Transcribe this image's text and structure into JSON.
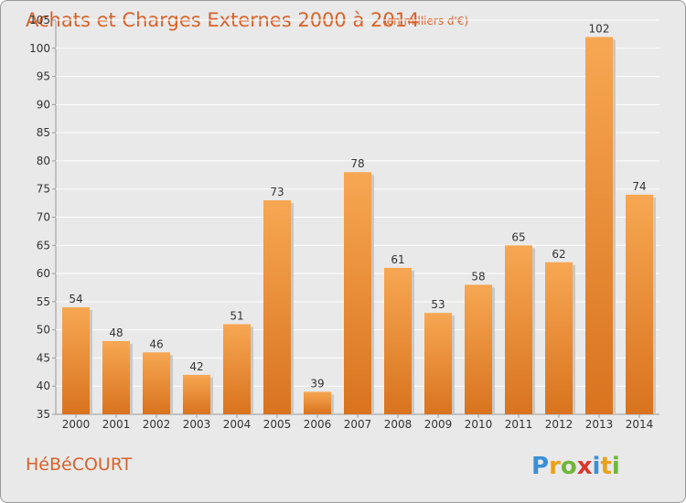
{
  "header": {
    "title": "Achats et Charges Externes 2000 à 2014",
    "unit": "(en milliers d'€)"
  },
  "footer": {
    "commune": "HéBéCOURT",
    "brand_letters": [
      "P",
      "r",
      "o",
      "x",
      "i",
      "t",
      "i"
    ],
    "brand_colors": [
      "#3a8fd6",
      "#e8a21a",
      "#6fb63a",
      "#d9382b",
      "#3a8fd6",
      "#e8a21a",
      "#6fb63a"
    ]
  },
  "colors": {
    "bar_light": "#f7a752",
    "bar_dark": "#d9731e",
    "title": "#d7622a",
    "background": "#e9e9e9",
    "grid": "#ffffff"
  },
  "chart_data": {
    "type": "bar",
    "title": "Achats et Charges Externes 2000 à 2014",
    "subtitle": "(en milliers d'€)",
    "xlabel": "",
    "ylabel": "",
    "categories": [
      "2000",
      "2001",
      "2002",
      "2003",
      "2004",
      "2005",
      "2006",
      "2007",
      "2008",
      "2009",
      "2010",
      "2011",
      "2012",
      "2013",
      "2014"
    ],
    "values": [
      54,
      48,
      46,
      42,
      51,
      73,
      39,
      78,
      61,
      53,
      58,
      65,
      62,
      102,
      74
    ],
    "ylim": [
      35,
      105
    ],
    "yticks": [
      35,
      40,
      45,
      50,
      55,
      60,
      65,
      70,
      75,
      80,
      85,
      90,
      95,
      100,
      105
    ],
    "grid": true,
    "legend": "none"
  }
}
